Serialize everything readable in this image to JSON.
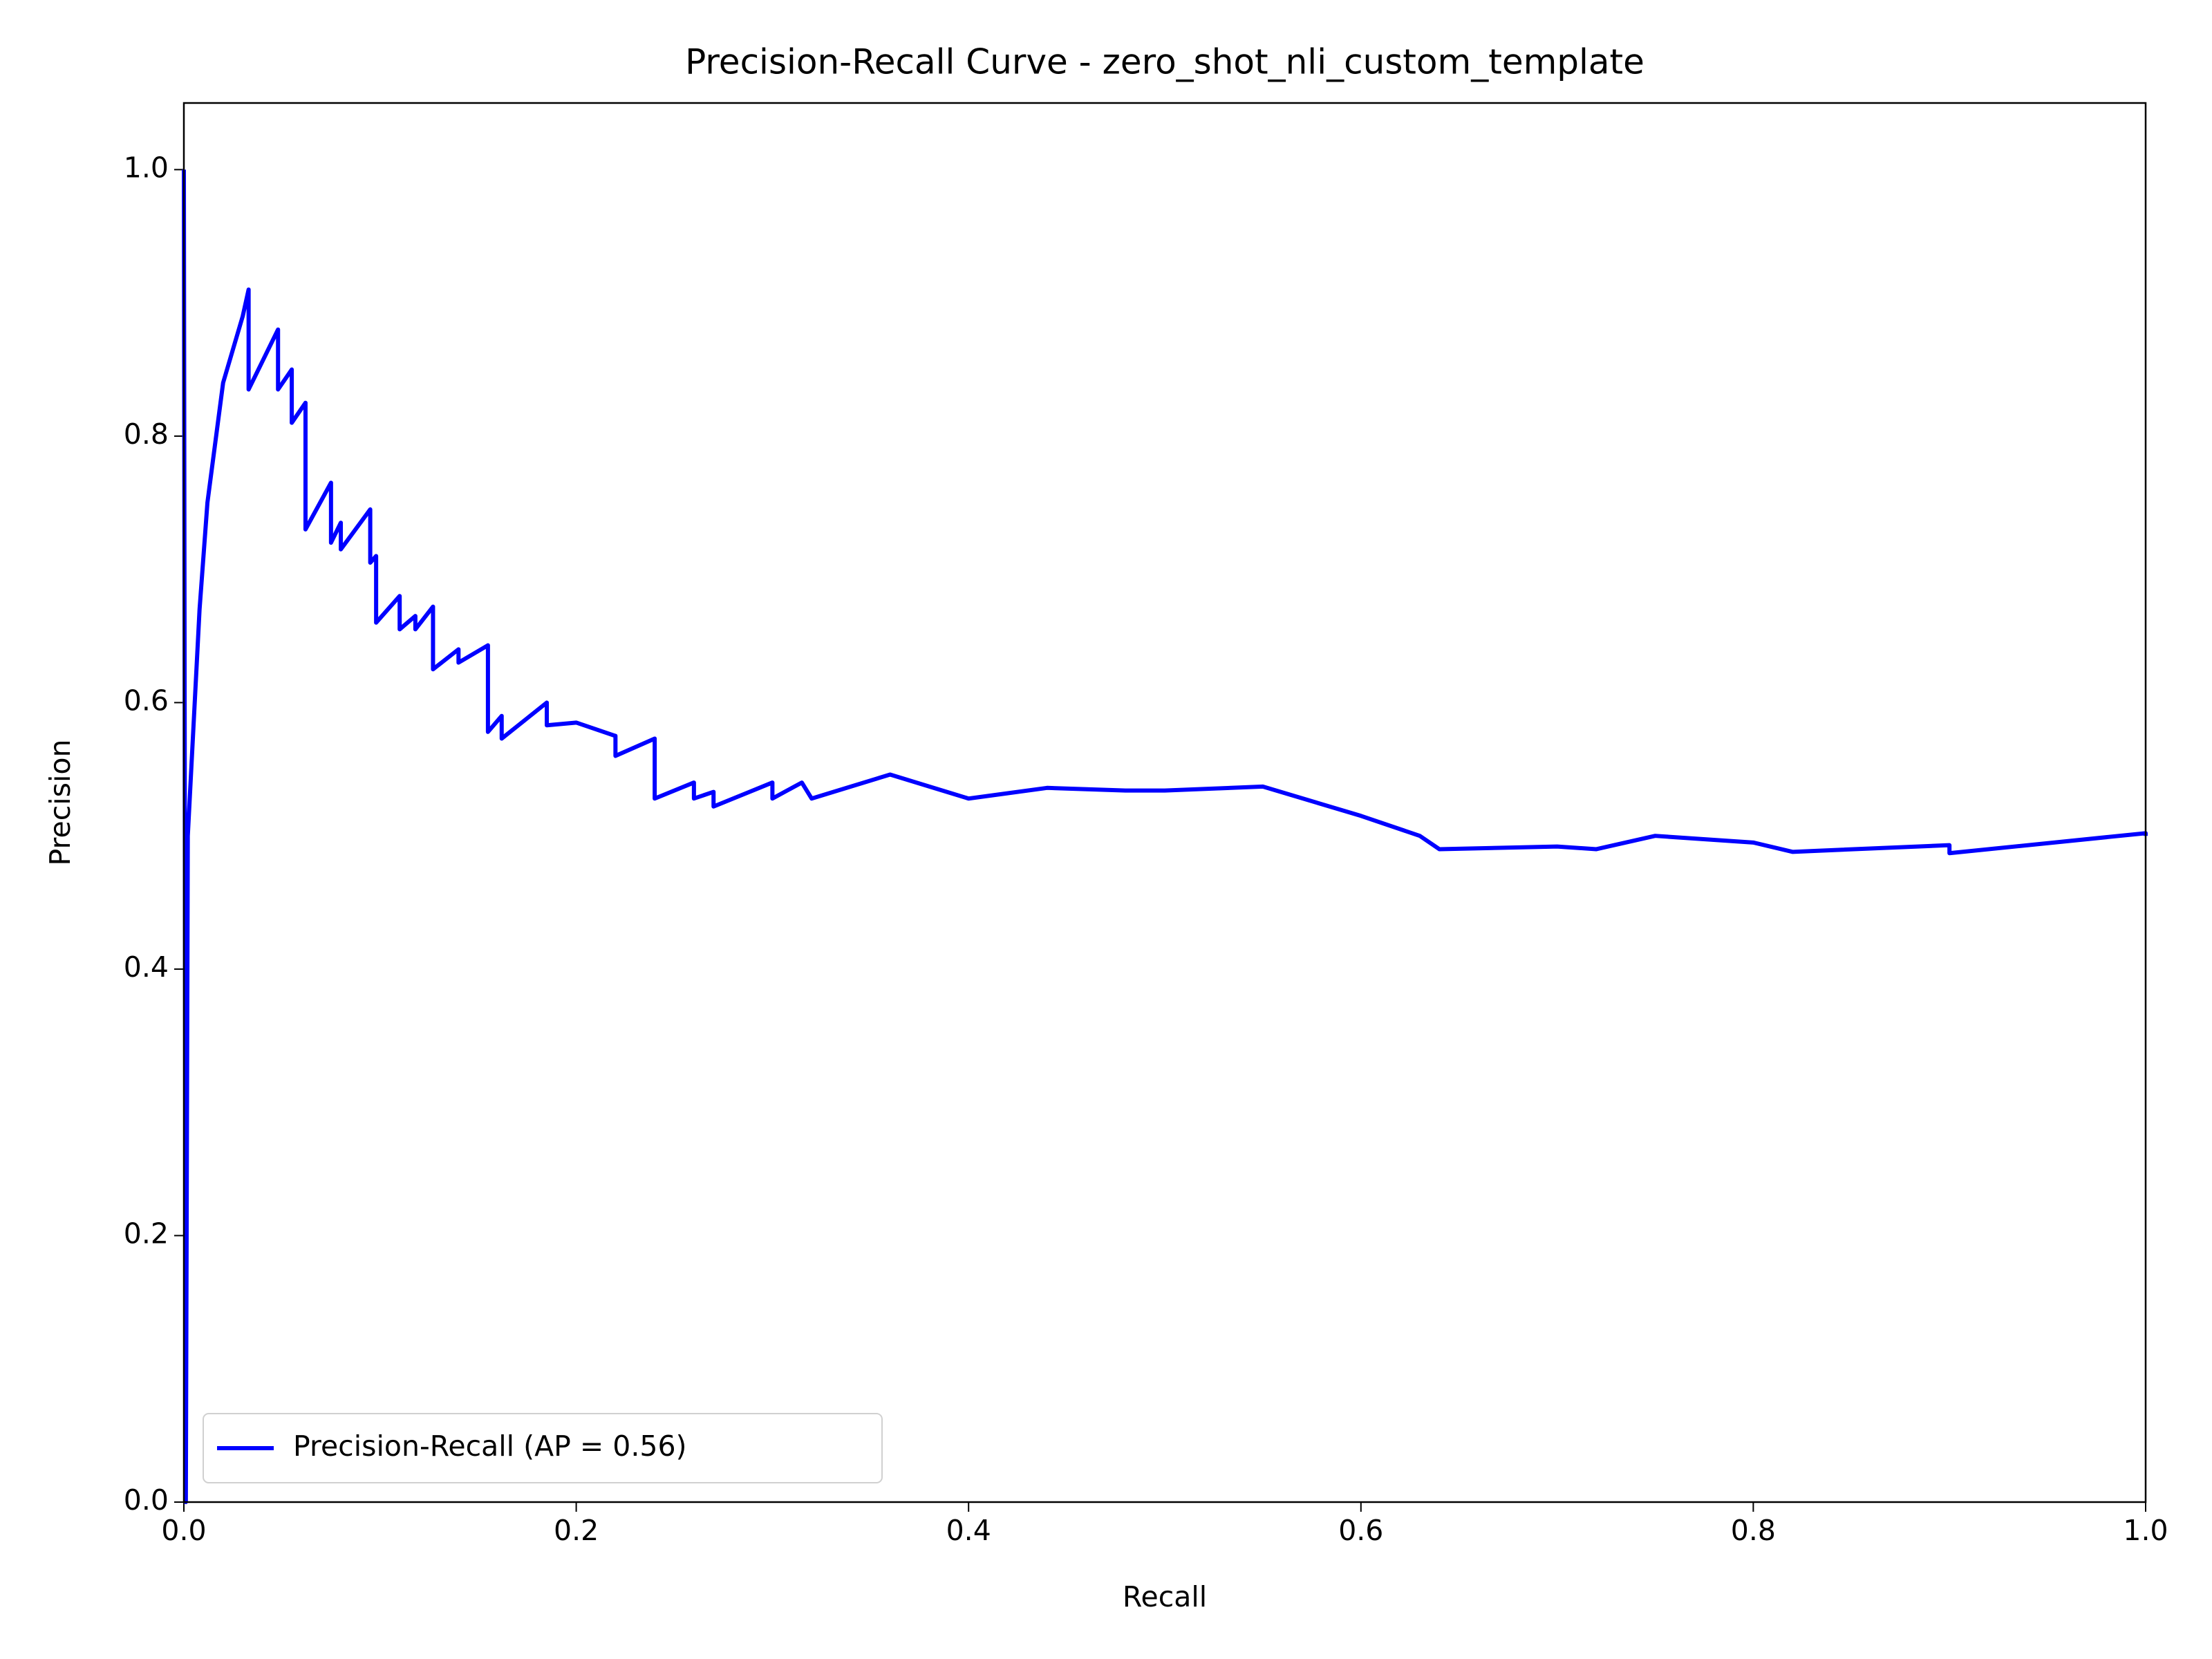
{
  "chart_data": {
    "type": "line",
    "title": "Precision-Recall Curve - zero_shot_nli_custom_template",
    "xlabel": "Recall",
    "ylabel": "Precision",
    "xlim": [
      0,
      1
    ],
    "ylim": [
      0,
      1.05
    ],
    "xticks": [
      {
        "value": 0,
        "label": "0.0"
      },
      0.2,
      0.4,
      0.6,
      0.8,
      {
        "value": 1,
        "label": "1.0"
      }
    ],
    "yticks": [
      {
        "value": 0,
        "label": "0.0"
      },
      0.2,
      0.4,
      0.6,
      0.8,
      {
        "value": 1,
        "label": "1.0"
      }
    ],
    "legend": "lower left",
    "series": [
      {
        "name": "Precision-Recall (AP = 0.56)",
        "color": "blue",
        "x": [
          0,
          0.001,
          0.002,
          0.008,
          0.012,
          0.02,
          0.03,
          0.033,
          0.033,
          0.048,
          0.048,
          0.055,
          0.055,
          0.062,
          0.062,
          0.075,
          0.075,
          0.08,
          0.08,
          0.095,
          0.095,
          0.098,
          0.098,
          0.11,
          0.11,
          0.118,
          0.118,
          0.127,
          0.127,
          0.14,
          0.14,
          0.155,
          0.155,
          0.162,
          0.162,
          0.185,
          0.185,
          0.2,
          0.22,
          0.22,
          0.24,
          0.24,
          0.26,
          0.26,
          0.27,
          0.27,
          0.3,
          0.3,
          0.315,
          0.32,
          0.36,
          0.4,
          0.44,
          0.48,
          0.5,
          0.55,
          0.6,
          0.63,
          0.64,
          0.7,
          0.72,
          0.75,
          0.8,
          0.82,
          0.9,
          0.9,
          1.0,
          1.0
        ],
        "values": [
          1.0,
          0,
          0.5,
          0.67,
          0.75,
          0.84,
          0.89,
          0.91,
          0.835,
          0.88,
          0.835,
          0.85,
          0.81,
          0.825,
          0.73,
          0.765,
          0.72,
          0.735,
          0.715,
          0.745,
          0.705,
          0.71,
          0.66,
          0.68,
          0.655,
          0.665,
          0.655,
          0.672,
          0.625,
          0.64,
          0.63,
          0.643,
          0.578,
          0.59,
          0.573,
          0.6,
          0.583,
          0.585,
          0.575,
          0.56,
          0.573,
          0.528,
          0.54,
          0.528,
          0.533,
          0.522,
          0.54,
          0.528,
          0.54,
          0.528,
          0.546,
          0.528,
          0.536,
          0.534,
          0.534,
          0.537,
          0.515,
          0.5,
          0.49,
          0.492,
          0.49,
          0.5,
          0.495,
          0.488,
          0.493,
          0.487,
          0.502,
          0.5
        ]
      }
    ]
  }
}
